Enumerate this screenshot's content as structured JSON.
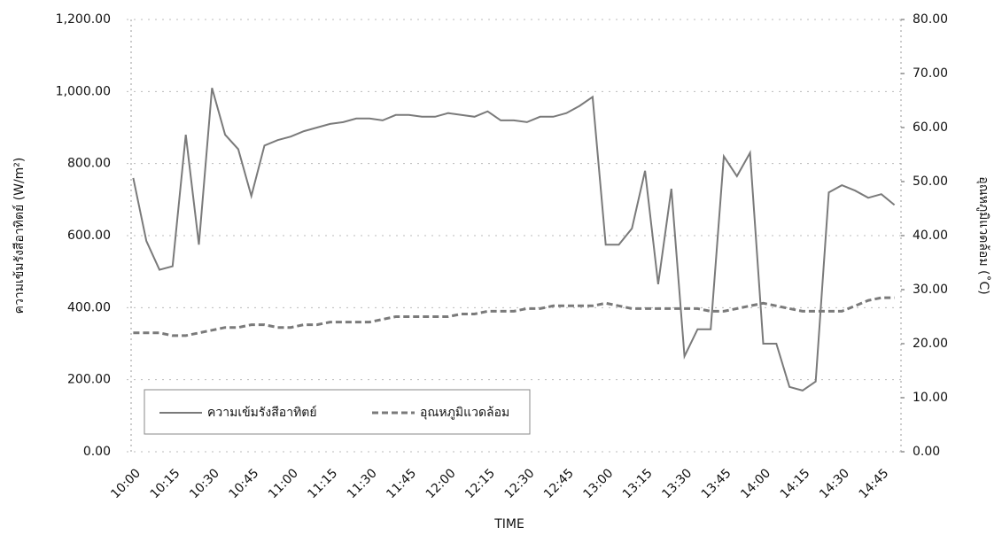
{
  "chart_data": {
    "type": "line",
    "x_label": "TIME",
    "y_label": "ความเข้มรังสีอาทิตย์ (W/m²)",
    "y2_label": "อุณหภูมิแวดล้อม (˚C)",
    "categories": [
      "10:00",
      null,
      null,
      "10:15",
      null,
      null,
      "10:30",
      null,
      null,
      "10:45",
      null,
      null,
      "11:00",
      null,
      null,
      "11:15",
      null,
      null,
      "11:30",
      null,
      null,
      "11:45",
      null,
      null,
      "12:00",
      null,
      null,
      "12:15",
      null,
      null,
      "12:30",
      null,
      null,
      "12:45",
      null,
      null,
      "13:00",
      null,
      null,
      "13:15",
      null,
      null,
      "13:30",
      null,
      null,
      "13:45",
      null,
      null,
      "14:00",
      null,
      null,
      "14:15",
      null,
      null,
      "14:30",
      null,
      null,
      "14:45",
      null
    ],
    "series": [
      {
        "name": "ความเข้มรังสีอาทิตย์",
        "color": "#7a7a7a",
        "dash": false,
        "values": [
          760,
          585,
          505,
          515,
          880,
          575,
          1010,
          880,
          840,
          710,
          850,
          865,
          875,
          890,
          900,
          910,
          915,
          925,
          925,
          920,
          935,
          935,
          930,
          930,
          940,
          935,
          930,
          945,
          920,
          920,
          915,
          930,
          930,
          940,
          960,
          985,
          575,
          575,
          620,
          780,
          465,
          730,
          265,
          340,
          340,
          820,
          765,
          830,
          300,
          300,
          180,
          170,
          195,
          720,
          740,
          725,
          705,
          715,
          685
        ]
      },
      {
        "name": "อุณหภูมิแวดล้อม",
        "color": "#7a7a7a",
        "dash": true,
        "axis": "y2",
        "values": [
          22,
          22,
          22,
          21.5,
          21.5,
          22,
          22.5,
          23,
          23,
          23.5,
          23.5,
          23,
          23,
          23.5,
          23.5,
          24,
          24,
          24,
          24,
          24.5,
          25,
          25,
          25,
          25,
          25,
          25.5,
          25.5,
          26,
          26,
          26,
          26.5,
          26.5,
          27,
          27,
          27,
          27,
          27.5,
          27,
          26.5,
          26.5,
          26.5,
          26.5,
          26.5,
          26.5,
          26,
          26,
          26.5,
          27,
          27.5,
          27,
          26.5,
          26,
          26,
          26,
          26,
          27,
          28,
          28.5,
          28.5
        ]
      }
    ],
    "ylim": [
      0,
      1200
    ],
    "yticks": [
      {
        "value": 0,
        "label": "0.00"
      },
      {
        "value": 200,
        "label": "200.00"
      },
      {
        "value": 400,
        "label": "400.00"
      },
      {
        "value": 600,
        "label": "600.00"
      },
      {
        "value": 800,
        "label": "800.00"
      },
      {
        "value": 1000,
        "label": "1,000.00"
      },
      {
        "value": 1200,
        "label": "1,200.00"
      }
    ],
    "y2lim": [
      0,
      80
    ],
    "y2ticks": [
      {
        "value": 0,
        "label": "0.00"
      },
      {
        "value": 10,
        "label": "10.00"
      },
      {
        "value": 20,
        "label": "20.00"
      },
      {
        "value": 30,
        "label": "30.00"
      },
      {
        "value": 40,
        "label": "40.00"
      },
      {
        "value": 50,
        "label": "50.00"
      },
      {
        "value": 60,
        "label": "60.00"
      },
      {
        "value": 70,
        "label": "70.00"
      },
      {
        "value": 80,
        "label": "80.00"
      }
    ],
    "grid": true
  }
}
